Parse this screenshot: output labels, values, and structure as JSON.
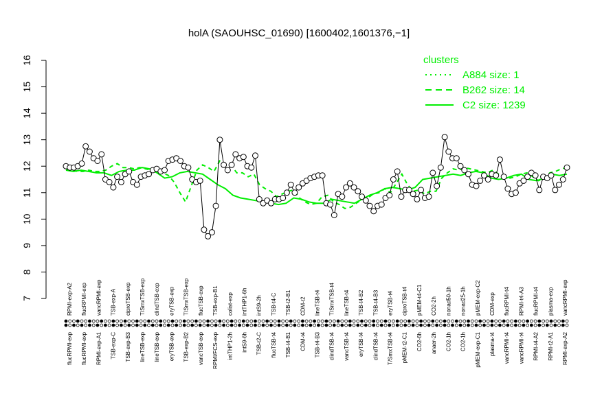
{
  "chart_data": {
    "type": "line",
    "title": "holA (SAOUHSC_01690) [1600402,1601376,−1]",
    "ylim": [
      7,
      16
    ],
    "yticks": [
      7,
      8,
      9,
      10,
      11,
      12,
      13,
      14,
      15,
      16
    ],
    "legend": {
      "title": "clusters",
      "position": "top-right",
      "color": "#00ee00",
      "entries": [
        {
          "label": "A884 size: 1",
          "style": "dotted"
        },
        {
          "label": "B262 size: 14",
          "style": "dashed"
        },
        {
          "label": "C2 size: 1239",
          "style": "solid"
        }
      ]
    },
    "colors": {
      "data_line": "#000000",
      "cluster": "#00ee00",
      "point_fill": "#ffffff"
    },
    "top_labels": [
      "RPMI-exp-A2",
      "flucRPMI-exp",
      "vancRPMI-exp",
      "TSB-exp-A",
      "ciproTSB-exp",
      "T/SmxTSB-exp",
      "clindTSB-exp",
      "eryTSB-exp",
      "T/SmxTSB-exp",
      "flucTSB-exp",
      "TSB-exp-B1",
      "colist-exp",
      "intTHP1-6h",
      "intS9-2h",
      "TSB-t4-C",
      "TSB-t2-B1",
      "CDM-t2",
      "lineTSB-t4",
      "T/SmxTSB-t4",
      "lineTSB-t4",
      "TSB-t4-B2",
      "TSB-t4-B3",
      "eryTSB-t4",
      "ciproTSB-t4",
      "pMEM-t4-C1",
      "CO2-2h",
      "nonad50-1h",
      "nonad25-1h",
      "pMEM-exp-C2",
      "CDM-exp",
      "flucRPMI-t4",
      "RPMI-t4-A3",
      "flucRPMI-t4",
      "plasma-exp",
      "vancRPMI-exp"
    ],
    "bottom_labels": [
      "flucRPMI-exp",
      "flucRPMI-exp",
      "RPMI-exp-A1",
      "TSB-exp-C",
      "TSB-exp-B3",
      "lineTSB-exp",
      "lineTSB-exp",
      "eryTSB-exp",
      "TSB-exp-B2",
      "vancTSB-exp",
      "RPMI/FCS-exp",
      "intTHP1-2h",
      "intS9-6h",
      "TSB-t2-C",
      "flucTSB-t4",
      "TSB-t4-B1",
      "CDM-t4",
      "TSB-t4-B3",
      "clindTSB-t4",
      "vancTSB-t4",
      "eryTSB-t4",
      "clindTSB-t4",
      "T/SmxTSB-t4",
      "pMEM-t2-C1",
      "CO2-6h",
      "anaer-2h",
      "CO2-1h",
      "CO2-1h",
      "pMEM-exp-C1",
      "plasma-t4",
      "vancRPMI-t4",
      "vancRPMI-t4",
      "RPMI-t4-A2",
      "RPMI-t2-A1",
      "RPMI-exp-A2"
    ],
    "series": [
      {
        "name": "holA",
        "values": [
          12.0,
          11.95,
          11.95,
          12.0,
          12.1,
          12.75,
          12.55,
          12.3,
          12.2,
          12.45,
          11.5,
          11.4,
          11.2,
          11.6,
          11.4,
          11.7,
          11.8,
          11.4,
          11.3,
          11.6,
          11.65,
          11.7,
          11.85,
          11.9,
          11.8,
          11.85,
          12.2,
          12.25,
          12.3,
          12.2,
          12.0,
          11.95,
          11.5,
          11.4,
          11.45,
          9.6,
          9.35,
          9.5,
          10.5,
          13.0,
          12.05,
          11.85,
          12.05,
          12.45,
          12.3,
          12.35,
          12.0,
          11.95,
          12.4,
          10.75,
          10.6,
          10.7,
          10.6,
          10.75,
          10.75,
          10.8,
          11.0,
          11.3,
          11.0,
          11.2,
          11.35,
          11.45,
          11.55,
          11.6,
          11.65,
          11.65,
          10.6,
          10.55,
          10.15,
          10.95,
          10.85,
          11.2,
          11.35,
          11.2,
          11.05,
          10.85,
          10.7,
          10.5,
          10.3,
          10.5,
          10.55,
          10.8,
          10.9,
          11.5,
          11.8,
          10.85,
          11.1,
          11.1,
          10.95,
          10.75,
          11.1,
          10.8,
          10.85,
          11.75,
          11.25,
          11.95,
          13.1,
          12.55,
          12.3,
          12.3,
          12.0,
          11.85,
          11.7,
          11.3,
          11.25,
          11.45,
          11.65,
          11.5,
          11.7,
          11.65,
          12.25,
          11.6,
          11.15,
          10.95,
          11.0,
          11.35,
          11.45,
          11.6,
          11.75,
          11.65,
          11.1,
          11.6,
          11.55,
          11.65,
          11.1,
          11.3,
          11.5,
          11.95
        ]
      },
      {
        "name": "B262",
        "values": [
          11.9,
          11.9,
          11.8,
          11.8,
          11.85,
          11.8,
          11.8,
          11.85,
          12.0,
          12.1,
          11.95,
          11.95,
          11.9,
          11.95,
          11.9,
          11.85,
          11.9,
          11.75,
          11.65,
          11.4,
          11.0,
          10.65,
          11.25,
          11.85,
          12.05,
          11.95,
          11.8,
          12.2,
          12.05,
          12.05,
          11.75,
          11.75,
          11.6,
          11.7,
          11.3,
          11.15,
          11.05,
          10.85,
          10.95,
          11.05,
          11.1,
          10.8,
          10.65,
          10.55,
          10.6,
          10.85,
          10.9,
          10.65,
          10.55,
          10.4,
          10.45,
          10.6,
          10.75,
          10.8,
          10.95,
          11.0,
          11.15,
          11.0,
          11.35,
          11.7,
          11.3,
          11.05,
          11.1,
          10.95,
          11.05,
          11.05,
          11.55,
          11.75,
          11.9,
          11.85,
          11.95,
          11.9,
          11.85,
          11.8,
          11.75,
          11.85,
          11.7,
          11.6,
          11.55,
          11.6,
          11.7,
          11.75,
          11.6,
          11.45,
          11.55,
          11.75,
          11.8,
          11.9,
          11.95
        ]
      },
      {
        "name": "C2",
        "values": [
          11.85,
          11.8,
          11.85,
          11.8,
          11.75,
          11.75,
          11.65,
          11.8,
          11.85,
          11.85,
          11.95,
          11.9,
          11.75,
          11.55,
          11.6,
          11.75,
          11.8,
          11.75,
          11.7,
          11.5,
          11.3,
          11.15,
          10.9,
          10.8,
          10.75,
          10.7,
          10.65,
          10.6,
          10.55,
          10.6,
          10.8,
          10.75,
          10.65,
          10.6,
          10.6,
          10.75,
          10.7,
          10.65,
          10.6,
          10.75,
          10.9,
          11.0,
          11.15,
          11.2,
          11.15,
          11.1,
          11.2,
          11.5,
          11.55,
          11.6,
          11.65,
          11.7,
          11.65,
          11.75,
          11.8,
          11.75,
          11.55,
          11.5,
          11.55,
          11.65,
          11.7,
          11.5,
          11.45,
          11.55,
          11.7,
          11.65,
          11.7
        ]
      }
    ]
  }
}
